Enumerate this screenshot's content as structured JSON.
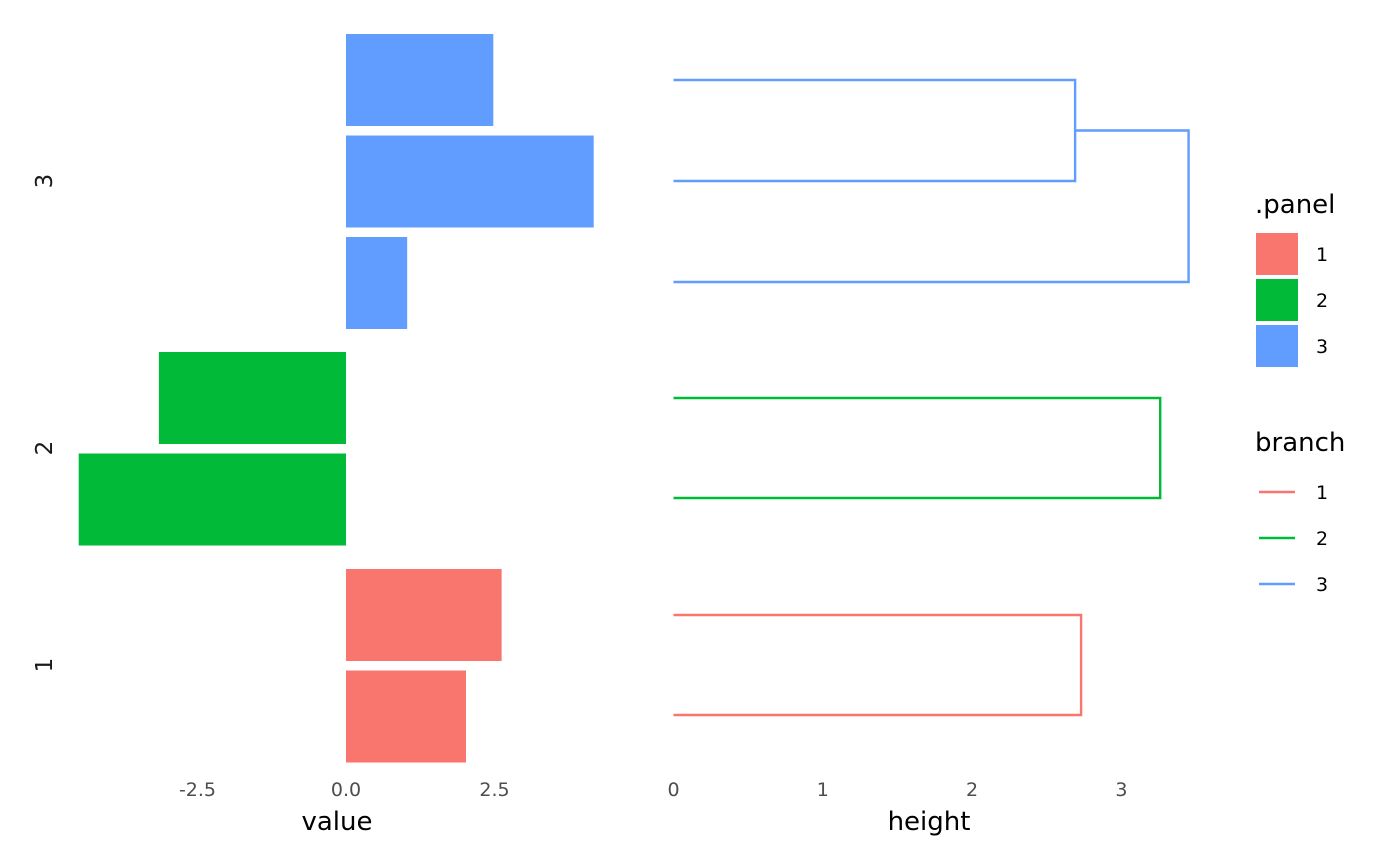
{
  "chart_data": [
    {
      "type": "bar",
      "orientation": "horizontal",
      "xlabel": "value",
      "x_ticks": [
        "-2.5",
        "0.0",
        "2.5"
      ],
      "x_tick_values": [
        -2.5,
        0.0,
        2.5
      ],
      "xlim": [
        -4.5,
        5.0
      ],
      "panels": [
        {
          "name": "1",
          "color": "#F8766D",
          "values": [
            2.62,
            2.02
          ]
        },
        {
          "name": "2",
          "color": "#00BA38",
          "values": [
            -3.15,
            -4.5
          ]
        },
        {
          "name": "3",
          "color": "#619CFF",
          "values": [
            2.48,
            4.17,
            1.03
          ]
        }
      ],
      "grid": false
    },
    {
      "type": "dendrogram",
      "xlabel": "height",
      "x_ticks": [
        "0",
        "1",
        "2",
        "3"
      ],
      "x_tick_values": [
        0,
        1,
        2,
        3
      ],
      "branches": [
        {
          "name": "1",
          "color": "#F8766D",
          "leaf_count": 2,
          "merge_height": 2.73
        },
        {
          "name": "2",
          "color": "#00BA38",
          "leaf_count": 2,
          "merge_height": 3.26
        },
        {
          "name": "3",
          "color": "#619CFF",
          "leaf_count": 3,
          "inner_merge_height": 2.69,
          "outer_merge_height": 3.45
        }
      ],
      "grid": false
    }
  ],
  "legends": [
    {
      "title": ".panel",
      "kind": "fill",
      "entries": [
        {
          "label": "1",
          "color": "#F8766D"
        },
        {
          "label": "2",
          "color": "#00BA38"
        },
        {
          "label": "3",
          "color": "#619CFF"
        }
      ]
    },
    {
      "title": "branch",
      "kind": "line",
      "entries": [
        {
          "label": "1",
          "color": "#F8766D"
        },
        {
          "label": "2",
          "color": "#00BA38"
        },
        {
          "label": "3",
          "color": "#619CFF"
        }
      ]
    }
  ]
}
